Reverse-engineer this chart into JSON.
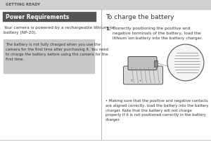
{
  "white_bg": "#ffffff",
  "header_bg": "#d0d0d0",
  "header_text": "GETTING READY",
  "header_text_color": "#555555",
  "section_title_bg": "#555555",
  "section_title_text": "Power Requirements",
  "section_title_color": "#ffffff",
  "body_text1": "Your camera is powered by a rechargeable lithium ion\nbattery (NP-20).",
  "note_bg": "#c8c8c8",
  "note_text": "The battery is not fully charged when you use the\ncamera for the first time after purchasing it. You need\nto charge the battery before using the camera for the\nfirst time.",
  "right_title": "To charge the battery",
  "step1_text": "Correctly positioning the positive and\nnegative terminals of the battery, load the\nlithium ion battery into the battery charger.",
  "bullet_text": "Making sure that the positive and negative contacts\nare aligned correctly, load the battery into the battery\ncharger. Note that the battery will not charge\nproperly if it is not positioned correctly in the battery\ncharger.",
  "divider_color": "#aaaaaa",
  "footer_line_color": "#aaaaaa",
  "text_color": "#333333",
  "small_font": 4.2,
  "title_font": 6.5,
  "section_font": 5.5,
  "step_font": 5.0,
  "header_font": 4.0
}
